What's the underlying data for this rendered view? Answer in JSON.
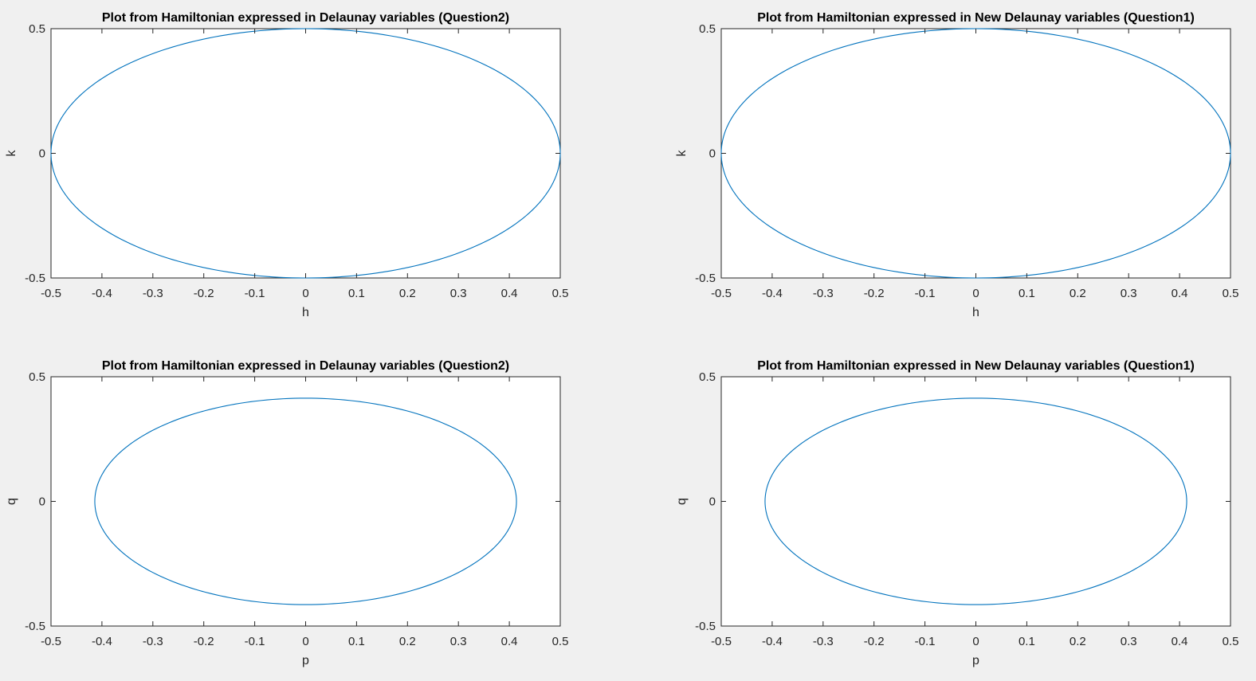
{
  "figure": {
    "background": "#f0f0f0",
    "axes_background": "#ffffff",
    "line_color": "#0072bd"
  },
  "chart_data": [
    {
      "type": "line",
      "title": "Plot from Hamiltonian expressed in Delaunay variables (Question2)",
      "xlabel": "h",
      "ylabel": "k",
      "xlim": [
        -0.5,
        0.5
      ],
      "ylim": [
        -0.5,
        0.5
      ],
      "xticks": [
        -0.5,
        -0.4,
        -0.3,
        -0.2,
        -0.1,
        0,
        0.1,
        0.2,
        0.3,
        0.4,
        0.5
      ],
      "xtick_labels": [
        "-0.5",
        "-0.4",
        "-0.3",
        "-0.2",
        "-0.1",
        "0",
        "0.1",
        "0.2",
        "0.3",
        "0.4",
        "0.5"
      ],
      "yticks": [
        -0.5,
        0,
        0.5
      ],
      "ytick_labels": [
        "-0.5",
        "0",
        "0.5"
      ],
      "grid": false,
      "series": [
        {
          "shape": "ellipse",
          "center": [
            0,
            0
          ],
          "x_radius": 0.5,
          "y_radius": 0.5
        }
      ]
    },
    {
      "type": "line",
      "title": "Plot from Hamiltonian expressed in New Delaunay variables (Question1)",
      "xlabel": "h",
      "ylabel": "k",
      "xlim": [
        -0.5,
        0.5
      ],
      "ylim": [
        -0.5,
        0.5
      ],
      "xticks": [
        -0.5,
        -0.4,
        -0.3,
        -0.2,
        -0.1,
        0,
        0.1,
        0.2,
        0.3,
        0.4,
        0.5
      ],
      "xtick_labels": [
        "-0.5",
        "-0.4",
        "-0.3",
        "-0.2",
        "-0.1",
        "0",
        "0.1",
        "0.2",
        "0.3",
        "0.4",
        "0.5"
      ],
      "yticks": [
        -0.5,
        0,
        0.5
      ],
      "ytick_labels": [
        "-0.5",
        "0",
        "0.5"
      ],
      "grid": false,
      "series": [
        {
          "shape": "ellipse",
          "center": [
            0,
            0
          ],
          "x_radius": 0.5,
          "y_radius": 0.5
        }
      ]
    },
    {
      "type": "line",
      "title": "Plot from Hamiltonian expressed in Delaunay variables (Question2)",
      "xlabel": "p",
      "ylabel": "q",
      "xlim": [
        -0.5,
        0.5
      ],
      "ylim": [
        -0.5,
        0.5
      ],
      "xticks": [
        -0.5,
        -0.4,
        -0.3,
        -0.2,
        -0.1,
        0,
        0.1,
        0.2,
        0.3,
        0.4,
        0.5
      ],
      "xtick_labels": [
        "-0.5",
        "-0.4",
        "-0.3",
        "-0.2",
        "-0.1",
        "0",
        "0.1",
        "0.2",
        "0.3",
        "0.4",
        "0.5"
      ],
      "yticks": [
        -0.5,
        0,
        0.5
      ],
      "ytick_labels": [
        "-0.5",
        "0",
        "0.5"
      ],
      "grid": false,
      "series": [
        {
          "shape": "ellipse",
          "center": [
            0,
            0
          ],
          "x_radius": 0.414,
          "y_radius": 0.414
        }
      ]
    },
    {
      "type": "line",
      "title": "Plot from Hamiltonian expressed in New Delaunay variables (Question1)",
      "xlabel": "p",
      "ylabel": "q",
      "xlim": [
        -0.5,
        0.5
      ],
      "ylim": [
        -0.5,
        0.5
      ],
      "xticks": [
        -0.5,
        -0.4,
        -0.3,
        -0.2,
        -0.1,
        0,
        0.1,
        0.2,
        0.3,
        0.4,
        0.5
      ],
      "xtick_labels": [
        "-0.5",
        "-0.4",
        "-0.3",
        "-0.2",
        "-0.1",
        "0",
        "0.1",
        "0.2",
        "0.3",
        "0.4",
        "0.5"
      ],
      "yticks": [
        -0.5,
        0,
        0.5
      ],
      "ytick_labels": [
        "-0.5",
        "0",
        "0.5"
      ],
      "grid": false,
      "series": [
        {
          "shape": "ellipse",
          "center": [
            0,
            0
          ],
          "x_radius": 0.414,
          "y_radius": 0.414
        }
      ]
    }
  ]
}
